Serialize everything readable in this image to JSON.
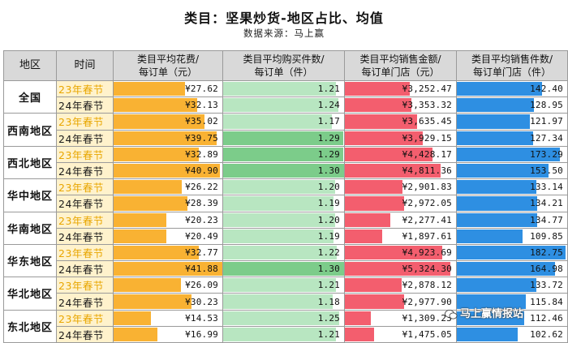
{
  "title": "类目：坚果炒货-地区占比、均值",
  "source": "数据来源：马上赢",
  "watermark": "马上赢情报站",
  "colors": {
    "spend": "#f9b233",
    "qty": "#7ccc8a",
    "qty_light": "#b8e6c1",
    "sales": "#f35e6e",
    "units": "#2e8fe2"
  },
  "headers": {
    "region": "地区",
    "period": "时间",
    "spend": [
      "类目平均花费/",
      "每订单（元）"
    ],
    "qty": [
      "类目平均购买件数/",
      "每订单（件）"
    ],
    "sales": [
      "类目平均销售金额/",
      "每订单门店（元）"
    ],
    "units": [
      "类目平均销售件数/",
      "每订单门店（件）"
    ]
  },
  "scales": {
    "spend_max": 42,
    "qty_max": 1.3,
    "sales_max": 5600,
    "units_max": 185
  },
  "rows": [
    {
      "region": "全国",
      "period": "23年春节",
      "spend": 27.62,
      "spend_label": "¥27.62",
      "qty": 1.21,
      "qty_label": "1.21",
      "sales": 3252.47,
      "sales_label": "¥3,252.47",
      "units": 142.4,
      "units_label": "142.40"
    },
    {
      "region": "全国",
      "period": "24年春节",
      "spend": 32.13,
      "spend_label": "¥32.13",
      "qty": 1.24,
      "qty_label": "1.24",
      "sales": 3353.32,
      "sales_label": "¥3,353.32",
      "units": 128.95,
      "units_label": "128.95"
    },
    {
      "region": "西南地区",
      "period": "23年春节",
      "spend": 35.02,
      "spend_label": "¥35.02",
      "qty": 1.17,
      "qty_label": "1.17",
      "sales": 3635.45,
      "sales_label": "¥3,635.45",
      "units": 121.97,
      "units_label": "121.97"
    },
    {
      "region": "西南地区",
      "period": "24年春节",
      "spend": 39.75,
      "spend_label": "¥39.75",
      "qty": 1.29,
      "qty_label": "1.29",
      "sales": 3929.15,
      "sales_label": "¥3,929.15",
      "units": 127.34,
      "units_label": "127.34"
    },
    {
      "region": "西北地区",
      "period": "23年春节",
      "spend": 32.89,
      "spend_label": "¥32.89",
      "qty": 1.29,
      "qty_label": "1.29",
      "sales": 4428.17,
      "sales_label": "¥4,428.17",
      "units": 173.29,
      "units_label": "173.29"
    },
    {
      "region": "西北地区",
      "period": "24年春节",
      "spend": 40.9,
      "spend_label": "¥40.90",
      "qty": 1.3,
      "qty_label": "1.30",
      "sales": 4811.36,
      "sales_label": "¥4,811.36",
      "units": 153.5,
      "units_label": "153.50"
    },
    {
      "region": "华中地区",
      "period": "23年春节",
      "spend": 26.22,
      "spend_label": "¥26.22",
      "qty": 1.2,
      "qty_label": "1.20",
      "sales": 2901.83,
      "sales_label": "¥2,901.83",
      "units": 133.14,
      "units_label": "133.14"
    },
    {
      "region": "华中地区",
      "period": "24年春节",
      "spend": 28.39,
      "spend_label": "¥28.39",
      "qty": 1.19,
      "qty_label": "1.19",
      "sales": 2972.05,
      "sales_label": "¥2,972.05",
      "units": 134.21,
      "units_label": "134.21"
    },
    {
      "region": "华南地区",
      "period": "23年春节",
      "spend": 20.23,
      "spend_label": "¥20.23",
      "qty": 1.2,
      "qty_label": "1.20",
      "sales": 2277.41,
      "sales_label": "¥2,277.41",
      "units": 134.77,
      "units_label": "134.77"
    },
    {
      "region": "华南地区",
      "period": "24年春节",
      "spend": 20.49,
      "spend_label": "¥20.49",
      "qty": 1.19,
      "qty_label": "1.19",
      "sales": 1897.61,
      "sales_label": "¥1,897.61",
      "units": 109.85,
      "units_label": "109.85"
    },
    {
      "region": "华东地区",
      "period": "23年春节",
      "spend": 32.77,
      "spend_label": "¥32.77",
      "qty": 1.22,
      "qty_label": "1.22",
      "sales": 4923.69,
      "sales_label": "¥4,923.69",
      "units": 182.75,
      "units_label": "182.75"
    },
    {
      "region": "华东地区",
      "period": "24年春节",
      "spend": 41.88,
      "spend_label": "¥41.88",
      "qty": 1.3,
      "qty_label": "1.30",
      "sales": 5324.3,
      "sales_label": "¥5,324.30",
      "units": 164.98,
      "units_label": "164.98"
    },
    {
      "region": "华北地区",
      "period": "23年春节",
      "spend": 26.09,
      "spend_label": "¥26.09",
      "qty": 1.21,
      "qty_label": "1.21",
      "sales": 2878.12,
      "sales_label": "¥2,878.12",
      "units": 133.72,
      "units_label": "133.72"
    },
    {
      "region": "华北地区",
      "period": "24年春节",
      "spend": 30.23,
      "spend_label": "¥30.23",
      "qty": 1.18,
      "qty_label": "1.18",
      "sales": 2977.9,
      "sales_label": "¥2,977.90",
      "units": 115.84,
      "units_label": "115.84"
    },
    {
      "region": "东北地区",
      "period": "23年春节",
      "spend": 14.53,
      "spend_label": "¥14.53",
      "qty": 1.25,
      "qty_label": "1.25",
      "sales": 1309.23,
      "sales_label": "¥1,309.23",
      "units": 112.46,
      "units_label": "112.46"
    },
    {
      "region": "东北地区",
      "period": "24年春节",
      "spend": 16.99,
      "spend_label": "¥16.99",
      "qty": 1.21,
      "qty_label": "1.21",
      "sales": 1475.05,
      "sales_label": "¥1,475.05",
      "units": 102.62,
      "units_label": "102.62"
    }
  ]
}
